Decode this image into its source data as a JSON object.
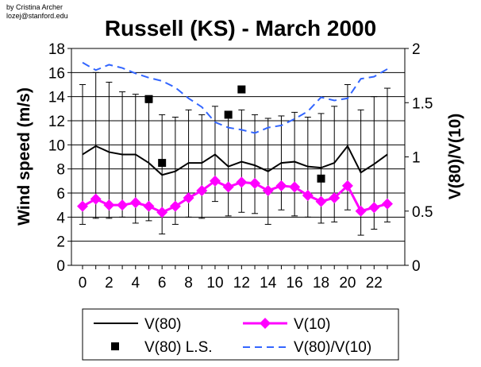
{
  "credit": [
    "by Cristina Archer",
    "lozej@stanford.edu"
  ],
  "chart_data": {
    "type": "line",
    "title": "Russell (KS) - March 2000",
    "xlabel": "",
    "ylabel": "Wind speed (m/s)",
    "y2label": "V(80)/V(10)",
    "xlim": [
      0,
      23
    ],
    "ylim": [
      0,
      18
    ],
    "y2lim": [
      0,
      2
    ],
    "x_ticks": [
      0,
      2,
      4,
      6,
      8,
      10,
      12,
      14,
      16,
      18,
      20,
      22
    ],
    "y_ticks": [
      0,
      2,
      4,
      6,
      8,
      10,
      12,
      14,
      16,
      18
    ],
    "y2_ticks": [
      0,
      0.5,
      1,
      1.5,
      2
    ],
    "grid": "horizontal",
    "legend_position": "bottom",
    "x": [
      0,
      1,
      2,
      3,
      4,
      5,
      6,
      7,
      8,
      9,
      10,
      11,
      12,
      13,
      14,
      15,
      16,
      17,
      18,
      19,
      20,
      21,
      22,
      23
    ],
    "series": [
      {
        "name": "V(80)",
        "axis": "left",
        "color": "#000000",
        "values": [
          9.2,
          9.9,
          9.4,
          9.2,
          9.2,
          8.5,
          7.5,
          7.8,
          8.5,
          8.5,
          9.2,
          8.2,
          8.6,
          8.3,
          7.8,
          8.5,
          8.6,
          8.2,
          8.1,
          8.5,
          9.9,
          7.7,
          8.4,
          9.2
        ],
        "error_low": [
          3.4,
          3.9,
          3.9,
          4.0,
          3.5,
          3.7,
          2.6,
          3.4,
          4.0,
          3.9,
          5.3,
          4.1,
          4.4,
          4.3,
          3.4,
          4.6,
          4.1,
          4.0,
          3.5,
          3.6,
          4.6,
          2.5,
          3.0,
          3.6
        ],
        "error_high": [
          15.0,
          16.0,
          15.2,
          14.4,
          14.2,
          13.5,
          12.5,
          12.3,
          12.9,
          12.5,
          13.2,
          12.6,
          12.9,
          12.5,
          12.2,
          12.4,
          12.7,
          12.3,
          12.6,
          13.2,
          15.0,
          12.9,
          14.0,
          14.7
        ]
      },
      {
        "name": "V(10)",
        "axis": "left",
        "color": "#ff00ff",
        "values": [
          4.9,
          5.5,
          5.0,
          5.0,
          5.2,
          4.9,
          4.4,
          4.9,
          5.6,
          6.2,
          7.0,
          6.5,
          6.9,
          6.8,
          6.2,
          6.6,
          6.5,
          5.8,
          5.3,
          5.6,
          6.6,
          4.5,
          4.8,
          5.1
        ]
      },
      {
        "name": "V(80) L.S.",
        "axis": "left",
        "color": "#000000",
        "marker": "square",
        "points": [
          [
            5,
            13.8
          ],
          [
            6,
            8.5
          ],
          [
            11,
            12.5
          ],
          [
            12,
            14.6
          ],
          [
            18,
            7.2
          ]
        ]
      },
      {
        "name": "V(80)/V(10)",
        "axis": "right",
        "color": "#3366ff",
        "dash": true,
        "values": [
          1.87,
          1.8,
          1.85,
          1.82,
          1.77,
          1.73,
          1.7,
          1.64,
          1.54,
          1.46,
          1.32,
          1.27,
          1.25,
          1.22,
          1.27,
          1.29,
          1.35,
          1.42,
          1.55,
          1.52,
          1.54,
          1.72,
          1.74,
          1.81
        ]
      }
    ]
  }
}
